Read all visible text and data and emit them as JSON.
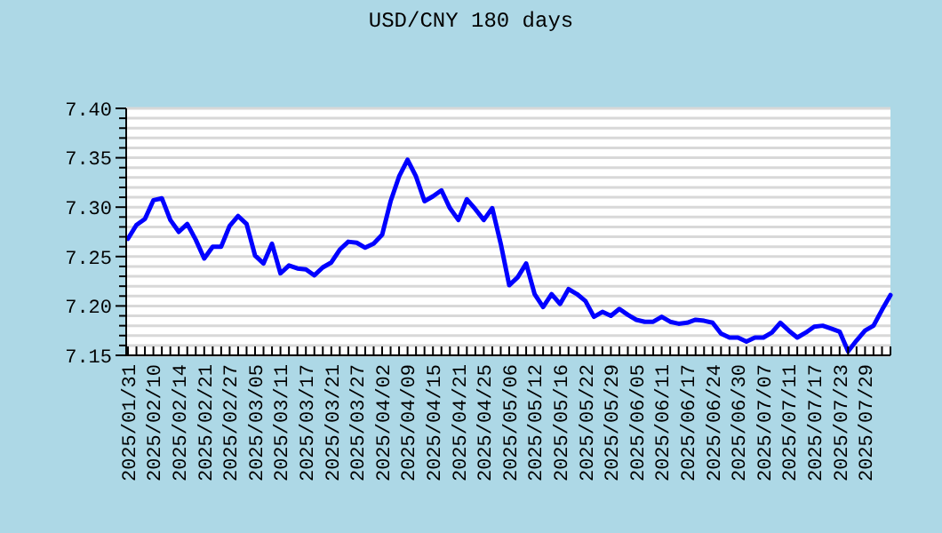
{
  "chart_data": {
    "type": "line",
    "title": "USD/CNY  180 days",
    "categories": [
      "2025/01/31",
      null,
      null,
      "2025/02/10",
      null,
      null,
      "2025/02/14",
      null,
      null,
      "2025/02/21",
      null,
      null,
      "2025/02/27",
      null,
      null,
      "2025/03/05",
      null,
      null,
      "2025/03/11",
      null,
      null,
      "2025/03/17",
      null,
      null,
      "2025/03/21",
      null,
      null,
      "2025/03/27",
      null,
      null,
      "2025/04/02",
      null,
      null,
      "2025/04/09",
      null,
      null,
      "2025/04/15",
      null,
      null,
      "2025/04/21",
      null,
      null,
      "2025/04/25",
      null,
      null,
      "2025/05/06",
      null,
      null,
      "2025/05/12",
      null,
      null,
      "2025/05/16",
      null,
      null,
      "2025/05/22",
      null,
      null,
      "2025/05/29",
      null,
      null,
      "2025/06/05",
      null,
      null,
      "2025/06/11",
      null,
      null,
      "2025/06/17",
      null,
      null,
      "2025/06/24",
      null,
      null,
      "2025/06/30",
      null,
      null,
      "2025/07/07",
      null,
      null,
      "2025/07/11",
      null,
      null,
      "2025/07/17",
      null,
      null,
      "2025/07/23",
      null,
      null,
      "2025/07/29",
      null,
      null,
      null
    ],
    "series": [
      {
        "color": "#0000ff",
        "values": [
          7.268,
          7.282,
          7.288,
          7.307,
          7.309,
          7.287,
          7.275,
          7.283,
          7.267,
          7.248,
          7.26,
          7.26,
          7.281,
          7.291,
          7.283,
          7.251,
          7.243,
          7.263,
          7.233,
          7.241,
          7.238,
          7.237,
          7.231,
          7.239,
          7.244,
          7.257,
          7.265,
          7.264,
          7.259,
          7.263,
          7.272,
          7.306,
          7.331,
          7.348,
          7.331,
          7.306,
          7.311,
          7.317,
          7.299,
          7.287,
          7.308,
          7.298,
          7.287,
          7.299,
          7.263,
          7.221,
          7.229,
          7.243,
          7.212,
          7.199,
          7.212,
          7.202,
          7.217,
          7.212,
          7.205,
          7.189,
          7.194,
          7.19,
          7.197,
          7.191,
          7.186,
          7.184,
          7.184,
          7.189,
          7.184,
          7.182,
          7.183,
          7.186,
          7.185,
          7.183,
          7.172,
          7.168,
          7.168,
          7.164,
          7.168,
          7.168,
          7.173,
          7.183,
          7.175,
          7.168,
          7.173,
          7.179,
          7.18,
          7.177,
          7.174,
          7.154,
          7.165,
          7.175,
          7.18,
          7.196,
          7.211
        ]
      }
    ],
    "ylim": [
      7.15,
      7.4
    ],
    "yticks": [
      {
        "value": 7.15,
        "label": "7.15"
      },
      {
        "value": 7.16,
        "label": null
      },
      {
        "value": 7.17,
        "label": null
      },
      {
        "value": 7.18,
        "label": null
      },
      {
        "value": 7.19,
        "label": null
      },
      {
        "value": 7.2,
        "label": "7.20"
      },
      {
        "value": 7.21,
        "label": null
      },
      {
        "value": 7.22,
        "label": null
      },
      {
        "value": 7.23,
        "label": null
      },
      {
        "value": 7.24,
        "label": null
      },
      {
        "value": 7.25,
        "label": "7.25"
      },
      {
        "value": 7.26,
        "label": null
      },
      {
        "value": 7.27,
        "label": null
      },
      {
        "value": 7.28,
        "label": null
      },
      {
        "value": 7.29,
        "label": null
      },
      {
        "value": 7.3,
        "label": "7.30"
      },
      {
        "value": 7.31,
        "label": null
      },
      {
        "value": 7.32,
        "label": null
      },
      {
        "value": 7.33,
        "label": null
      },
      {
        "value": 7.34,
        "label": null
      },
      {
        "value": 7.35,
        "label": "7.35"
      },
      {
        "value": 7.36,
        "label": null
      },
      {
        "value": 7.37,
        "label": null
      },
      {
        "value": 7.38,
        "label": null
      },
      {
        "value": 7.39,
        "label": null
      },
      {
        "value": 7.4,
        "label": "7.40"
      }
    ],
    "grid": "y",
    "marker": "none",
    "line_style": "solid"
  }
}
